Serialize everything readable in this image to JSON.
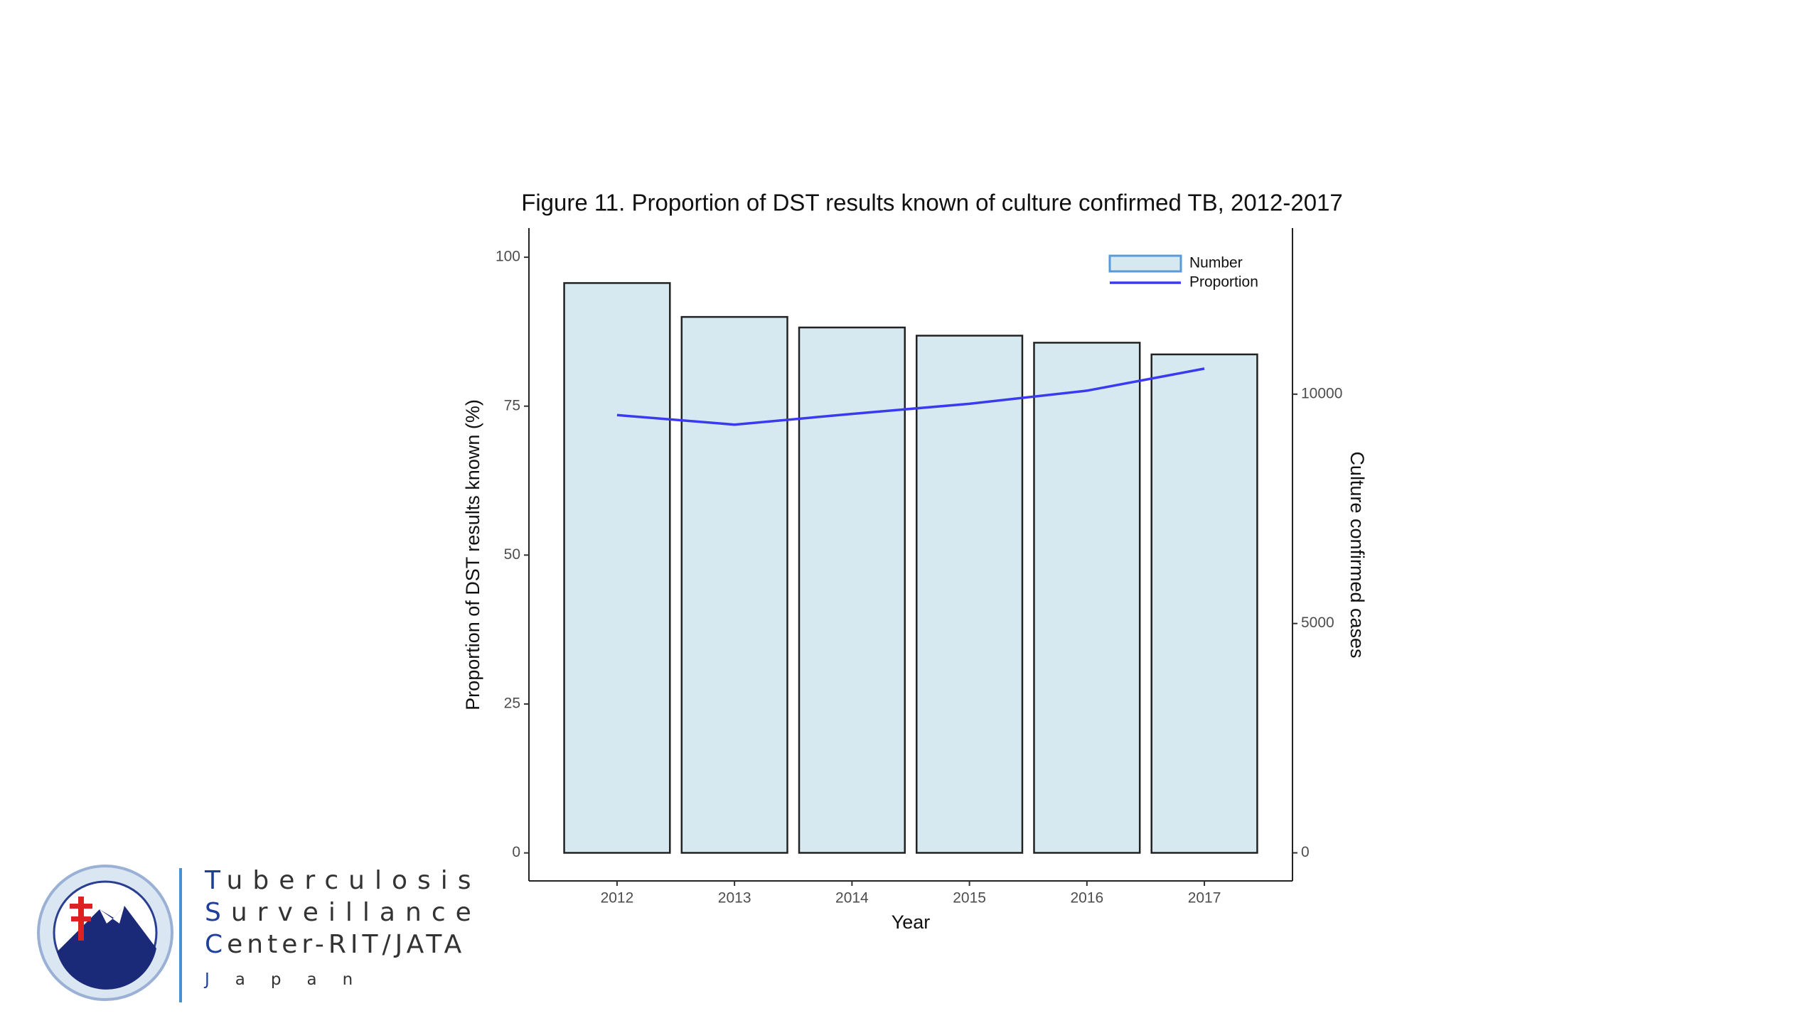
{
  "chart_data": {
    "type": "combo",
    "title": "Figure 11. Proportion of DST results known of culture confirmed TB, 2012-2017",
    "x_label": "Year",
    "y_label": "Proportion of DST results known (%)",
    "y2_label": "Culture confirmed cases",
    "categories": [
      "2012",
      "2013",
      "2014",
      "2015",
      "2016",
      "2017"
    ],
    "series": [
      {
        "name": "Number",
        "type": "bar",
        "axis": "y2",
        "color": "#d6e9f1",
        "values": [
          12423,
          11684,
          11454,
          11276,
          11122,
          10867
        ]
      },
      {
        "name": "Proportion",
        "type": "line",
        "color": "#3a3af0",
        "values": [
          73.5,
          71.9,
          73.7,
          75.4,
          77.6,
          81.3
        ]
      }
    ],
    "ylim": [
      -4.7,
      104.9
    ],
    "yticks": [
      0,
      25,
      50,
      75,
      100
    ],
    "y2lim": [
      -612,
      13622
    ],
    "y2ticks": [
      0,
      5000,
      10000
    ],
    "grid": false,
    "legend": "top-right"
  },
  "logo": {
    "lines": [
      "Tuberculosis",
      "Surveillance",
      "Center-RIT/JATA",
      "Japan"
    ]
  }
}
